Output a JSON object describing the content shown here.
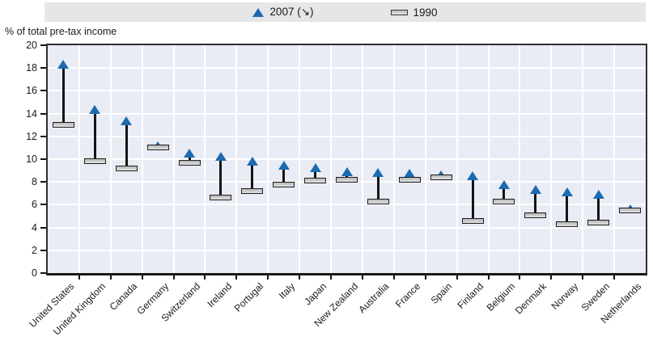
{
  "header": {
    "axis_title": "% of total pre-tax income"
  },
  "legend": {
    "items": [
      {
        "label": "2007 (↘)",
        "marker": "triangle-up",
        "color": "#1c6bb0"
      },
      {
        "label": "1990",
        "marker": "dash",
        "color": "#cccccc"
      }
    ]
  },
  "chart_data": {
    "type": "scatter",
    "subtype": "dumbbell-range",
    "title": "",
    "ylabel": "% of total pre-tax income",
    "xlabel": "",
    "ylim": [
      0,
      20
    ],
    "ytick_step": 2,
    "yticks": [
      0,
      2,
      4,
      6,
      8,
      10,
      12,
      14,
      16,
      18,
      20
    ],
    "grid": true,
    "legend_position": "top-center",
    "categories": [
      "United States",
      "United Kingdom",
      "Canada",
      "Germany",
      "Switzerland",
      "Ireland",
      "Portugal",
      "Italy",
      "Japan",
      "New Zealand",
      "Australia",
      "France",
      "Spain",
      "Finland",
      "Belgium",
      "Denmark",
      "Norway",
      "Sweden",
      "Netherlands"
    ],
    "series": [
      {
        "name": "2007 (↘)",
        "marker": "triangle-up",
        "color": "#1c6bb0",
        "values": [
          18.3,
          14.3,
          13.3,
          11.1,
          10.5,
          10.2,
          9.8,
          9.4,
          9.2,
          8.9,
          8.8,
          8.7,
          8.6,
          8.5,
          7.7,
          7.3,
          7.1,
          6.9,
          5.6
        ]
      },
      {
        "name": "1990",
        "marker": "dash",
        "color": "#cccccc",
        "values": [
          13.0,
          9.8,
          9.2,
          11.0,
          9.7,
          6.6,
          7.2,
          7.8,
          8.1,
          8.2,
          6.3,
          8.2,
          8.4,
          4.6,
          6.3,
          5.1,
          4.3,
          4.4,
          5.5
        ]
      }
    ]
  }
}
